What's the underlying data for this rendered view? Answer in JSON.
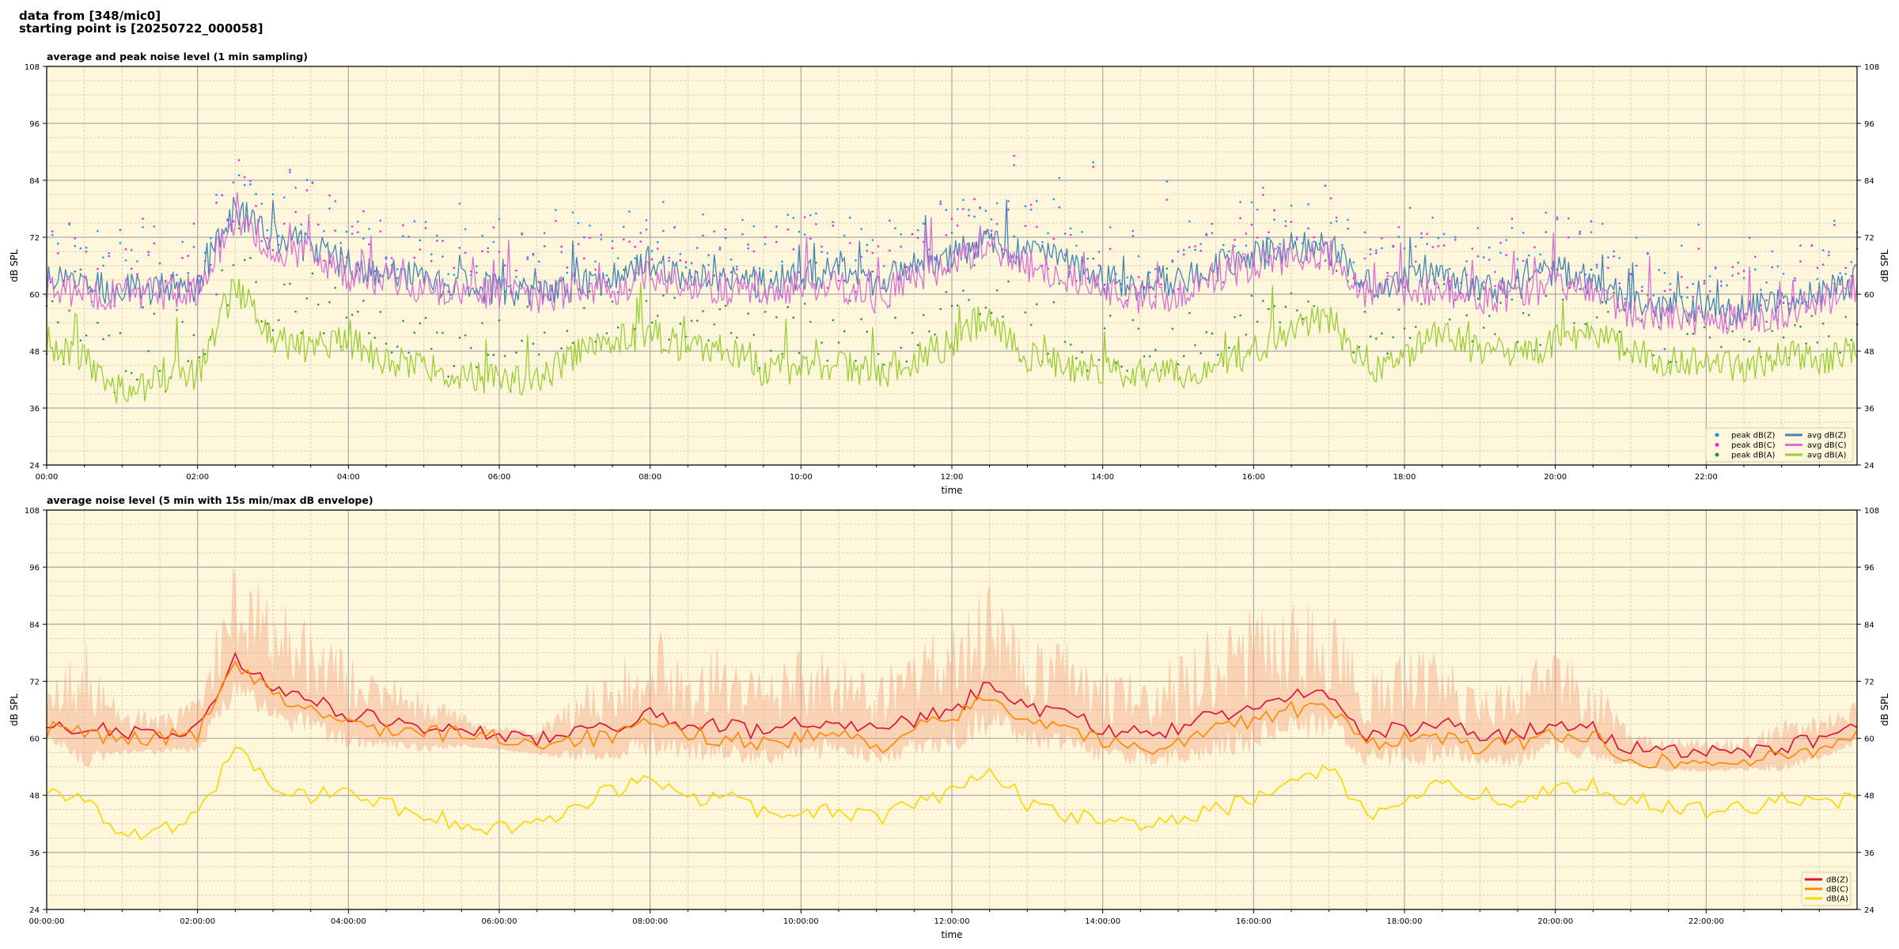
{
  "header": {
    "line1": "data from [348/mic0]",
    "line2": "starting point is [20250722_000058]"
  },
  "chart_data": [
    {
      "type": "line",
      "title": "average and peak noise level (1 min sampling)",
      "xlabel": "time",
      "ylabel": "dB SPL",
      "ylim": [
        24,
        108
      ],
      "yticks": [
        "24",
        "36",
        "48",
        "60",
        "72",
        "84",
        "96",
        "108"
      ],
      "xlim_hours": [
        0,
        24
      ],
      "xticks": [
        "00:00",
        "02:00",
        "04:00",
        "06:00",
        "08:00",
        "10:00",
        "12:00",
        "14:00",
        "16:00",
        "18:00",
        "20:00",
        "22:00"
      ],
      "x_hours_step": 0.5,
      "legend": "bottom-right",
      "series": [
        {
          "name": "peak dB(Z)",
          "kind": "scatter",
          "color": "#1e90ff",
          "base": "avg dB(Z)"
        },
        {
          "name": "peak dB(C)",
          "kind": "scatter",
          "color": "#ff1ee6",
          "base": "avg dB(C)"
        },
        {
          "name": "peak dB(A)",
          "kind": "scatter",
          "color": "#2e8b57",
          "base": "avg dB(A)"
        },
        {
          "name": "avg dB(Z)",
          "kind": "line",
          "color": "#4682b4",
          "values": [
            63,
            62,
            61,
            61,
            62,
            78,
            72,
            70,
            66,
            65,
            63,
            62,
            61,
            60,
            62,
            63,
            66,
            64,
            64,
            62,
            64,
            65,
            62,
            66,
            68,
            72,
            68,
            67,
            63,
            62,
            63,
            66,
            68,
            70,
            70,
            62,
            63,
            64,
            61,
            62,
            65,
            63,
            58,
            57,
            57,
            57,
            58,
            60,
            63
          ]
        },
        {
          "name": "avg dB(C)",
          "kind": "line",
          "color": "#da70d6",
          "values": [
            61,
            60,
            60,
            60,
            61,
            76,
            70,
            68,
            64,
            63,
            61,
            61,
            60,
            59,
            61,
            61,
            64,
            62,
            61,
            60,
            62,
            62,
            59,
            64,
            66,
            70,
            66,
            64,
            61,
            59,
            60,
            64,
            66,
            68,
            68,
            60,
            61,
            61,
            59,
            60,
            62,
            61,
            56,
            55,
            55,
            55,
            56,
            58,
            61
          ]
        },
        {
          "name": "avg dB(A)",
          "kind": "line",
          "color": "#9acd32",
          "values": [
            50,
            46,
            39,
            42,
            43,
            62,
            50,
            49,
            50,
            46,
            45,
            43,
            42,
            42,
            47,
            50,
            52,
            48,
            49,
            44,
            44,
            45,
            43,
            46,
            50,
            56,
            47,
            45,
            44,
            43,
            43,
            45,
            48,
            52,
            55,
            44,
            47,
            52,
            48,
            47,
            50,
            52,
            48,
            46,
            45,
            45,
            47,
            46,
            48
          ]
        }
      ]
    },
    {
      "type": "line",
      "title": "average noise level (5 min with 15s min/max dB envelope)",
      "xlabel": "time",
      "ylabel": "dB SPL",
      "ylim": [
        24,
        108
      ],
      "yticks": [
        "24",
        "36",
        "48",
        "60",
        "72",
        "84",
        "96",
        "108"
      ],
      "xlim_hours": [
        0,
        24
      ],
      "xticks": [
        "00:00:00",
        "02:00:00",
        "04:00:00",
        "06:00:00",
        "08:00:00",
        "10:00:00",
        "12:00:00",
        "14:00:00",
        "16:00:00",
        "18:00:00",
        "20:00:00",
        "22:00:00"
      ],
      "x_hours_step": 0.5,
      "legend": "bottom-right",
      "envelope": {
        "name": "min/max dB envelope",
        "color": "#f4a582",
        "opacity": 0.45,
        "max_offset": [
          4,
          12,
          3,
          3,
          4,
          14,
          12,
          10,
          8,
          6,
          5,
          2,
          1,
          1,
          6,
          8,
          12,
          10,
          10,
          8,
          10,
          10,
          8,
          10,
          12,
          14,
          10,
          10,
          8,
          8,
          10,
          12,
          14,
          12,
          12,
          8,
          10,
          10,
          6,
          8,
          10,
          8,
          2,
          2,
          2,
          2,
          4,
          3,
          3
        ]
      },
      "series": [
        {
          "name": "dB(Z)",
          "color": "#dc143c",
          "values": [
            64,
            62,
            61,
            61,
            62,
            77,
            71,
            68,
            65,
            64,
            62,
            62,
            61,
            60,
            61,
            62,
            65,
            63,
            63,
            61,
            63,
            64,
            61,
            64,
            66,
            71,
            66,
            65,
            62,
            61,
            62,
            65,
            67,
            69,
            69,
            61,
            62,
            63,
            60,
            61,
            64,
            62,
            58,
            57,
            57,
            57,
            58,
            60,
            63
          ]
        },
        {
          "name": "dB(C)",
          "color": "#ff8c00",
          "values": [
            62,
            61,
            60,
            60,
            61,
            75,
            69,
            66,
            63,
            62,
            61,
            61,
            60,
            59,
            60,
            60,
            63,
            61,
            60,
            59,
            60,
            61,
            58,
            62,
            64,
            69,
            64,
            63,
            59,
            58,
            59,
            62,
            64,
            66,
            66,
            59,
            60,
            60,
            58,
            59,
            61,
            60,
            56,
            55,
            55,
            55,
            56,
            58,
            61
          ]
        },
        {
          "name": "dB(A)",
          "color": "#ffd700",
          "values": [
            50,
            47,
            39,
            41,
            43,
            58,
            49,
            48,
            49,
            46,
            44,
            42,
            41,
            42,
            46,
            49,
            51,
            47,
            48,
            44,
            44,
            45,
            43,
            46,
            49,
            54,
            46,
            44,
            43,
            42,
            43,
            45,
            47,
            51,
            54,
            44,
            46,
            51,
            48,
            47,
            50,
            50,
            47,
            46,
            45,
            45,
            47,
            46,
            48
          ]
        }
      ]
    }
  ]
}
